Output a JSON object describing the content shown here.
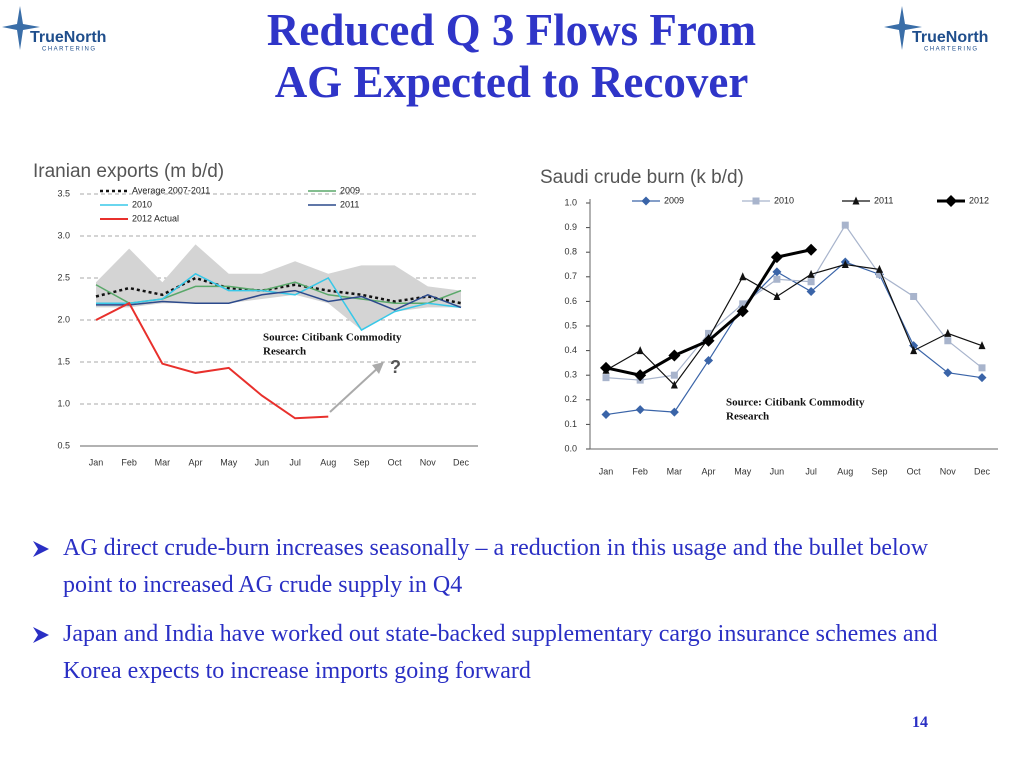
{
  "title": [
    "Reduced Q 3 Flows From",
    "AG Expected to Recover"
  ],
  "logo": {
    "name": "TrueNorth",
    "tagline": "CHARTERING"
  },
  "bullets": [
    "AG direct crude-burn increases seasonally – a reduction in this usage and the bullet below point to increased AG crude supply in Q4",
    "Japan and India have worked out state-backed supplementary cargo insurance schemes and Korea expects to increase imports going forward"
  ],
  "page_number": 14,
  "chart_data": [
    {
      "type": "line",
      "title": "Iranian exports (m b/d)",
      "categories": [
        "Jan",
        "Feb",
        "Mar",
        "Apr",
        "May",
        "Jun",
        "Jul",
        "Aug",
        "Sep",
        "Oct",
        "Nov",
        "Dec"
      ],
      "band": {
        "color": "#d4d4d4",
        "high": [
          2.45,
          2.85,
          2.45,
          2.9,
          2.55,
          2.55,
          2.7,
          2.55,
          2.65,
          2.65,
          2.4,
          2.35
        ],
        "low": [
          2.15,
          2.15,
          2.2,
          2.2,
          2.2,
          2.25,
          2.3,
          2.2,
          1.88,
          2.1,
          2.15,
          2.15
        ]
      },
      "series": [
        {
          "name": "Average 2007-2011",
          "color": "#111111",
          "dash": true,
          "width": 2.5,
          "values": [
            2.28,
            2.38,
            2.3,
            2.5,
            2.38,
            2.35,
            2.42,
            2.35,
            2.3,
            2.22,
            2.28,
            2.2
          ]
        },
        {
          "name": "2009",
          "color": "#5aa86a",
          "width": 1.5,
          "values": [
            2.42,
            2.2,
            2.25,
            2.4,
            2.4,
            2.35,
            2.45,
            2.3,
            2.25,
            2.2,
            2.2,
            2.35
          ]
        },
        {
          "name": "2010",
          "color": "#38c8e8",
          "width": 1.5,
          "values": [
            2.2,
            2.2,
            2.25,
            2.55,
            2.35,
            2.35,
            2.3,
            2.5,
            1.88,
            2.1,
            2.2,
            2.15
          ]
        },
        {
          "name": "2011",
          "color": "#2c4a8c",
          "width": 1.5,
          "values": [
            2.18,
            2.18,
            2.22,
            2.2,
            2.2,
            2.3,
            2.35,
            2.22,
            2.28,
            2.12,
            2.3,
            2.15
          ]
        },
        {
          "name": "2012 Actual",
          "color": "#e8302c",
          "width": 2,
          "values": [
            2.0,
            2.2,
            1.48,
            1.37,
            1.43,
            1.1,
            0.83,
            0.85,
            null,
            null,
            null,
            null
          ]
        }
      ],
      "ylim": [
        0.5,
        3.5
      ],
      "yticks": [
        0.5,
        {
          "value": 1,
          "label": "1.0"
        },
        1.5,
        {
          "value": 2,
          "label": "2.0"
        },
        2.5,
        {
          "value": 3,
          "label": "3.0"
        },
        3.5
      ],
      "grid": true,
      "annotations": [
        "?"
      ],
      "source": [
        "Source: Citibank Commodity",
        "Research"
      ]
    },
    {
      "type": "line",
      "title": "Saudi crude burn (k b/d)",
      "categories": [
        "Jan",
        "Feb",
        "Mar",
        "Apr",
        "May",
        "Jun",
        "Jul",
        "Aug",
        "Sep",
        "Oct",
        "Nov",
        "Dec"
      ],
      "series": [
        {
          "name": "2009",
          "color": "#3a64a8",
          "marker": "diamond",
          "width": 1.2,
          "values": [
            0.14,
            0.16,
            0.15,
            0.36,
            0.58,
            0.72,
            0.64,
            0.76,
            0.71,
            0.42,
            0.31,
            0.29
          ]
        },
        {
          "name": "2010",
          "color": "#a8b4cc",
          "marker": "square",
          "width": 1.2,
          "values": [
            0.29,
            0.28,
            0.3,
            0.47,
            0.59,
            0.69,
            0.68,
            0.91,
            0.71,
            0.62,
            0.44,
            0.33
          ]
        },
        {
          "name": "2011",
          "color": "#111111",
          "marker": "triangle",
          "width": 1.2,
          "values": [
            0.32,
            0.4,
            0.26,
            0.45,
            0.7,
            0.62,
            0.71,
            0.75,
            0.73,
            0.4,
            0.47,
            0.42
          ]
        },
        {
          "name": "2012",
          "color": "#000000",
          "marker": "diamond",
          "width": 3,
          "values": [
            0.33,
            0.3,
            0.38,
            0.44,
            0.56,
            0.78,
            0.81,
            null,
            null,
            null,
            null,
            null
          ]
        }
      ],
      "ylim": [
        0,
        1
      ],
      "yticks": [
        {
          "value": 0,
          "label": "0.0"
        },
        0.1,
        0.2,
        0.3,
        0.4,
        0.5,
        0.6,
        0.7,
        0.8,
        0.9,
        {
          "value": 1,
          "label": "1.0"
        }
      ],
      "grid": false,
      "source": [
        "Source: Citibank Commodity",
        "Research"
      ]
    }
  ]
}
